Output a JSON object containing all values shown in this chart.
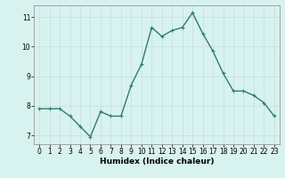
{
  "x": [
    0,
    1,
    2,
    3,
    4,
    5,
    6,
    7,
    8,
    9,
    10,
    11,
    12,
    13,
    14,
    15,
    16,
    17,
    18,
    19,
    20,
    21,
    22,
    23
  ],
  "y": [
    7.9,
    7.9,
    7.9,
    7.65,
    7.3,
    6.95,
    7.8,
    7.65,
    7.65,
    8.7,
    9.4,
    10.65,
    10.35,
    10.55,
    10.65,
    11.15,
    10.45,
    9.85,
    9.1,
    8.5,
    8.5,
    8.35,
    8.1,
    7.65
  ],
  "line_color": "#2e7d6e",
  "marker": "+",
  "marker_size": 3,
  "linewidth": 1.0,
  "marker_linewidth": 0.8,
  "xlabel": "Humidex (Indice chaleur)",
  "xlim": [
    -0.5,
    23.5
  ],
  "ylim": [
    6.7,
    11.4
  ],
  "yticks": [
    7,
    8,
    9,
    10,
    11
  ],
  "xticks": [
    0,
    1,
    2,
    3,
    4,
    5,
    6,
    7,
    8,
    9,
    10,
    11,
    12,
    13,
    14,
    15,
    16,
    17,
    18,
    19,
    20,
    21,
    22,
    23
  ],
  "background_color": "#d8f2f0",
  "grid_color": "#c4dedd",
  "tick_fontsize": 5.5,
  "xlabel_fontsize": 6.5
}
